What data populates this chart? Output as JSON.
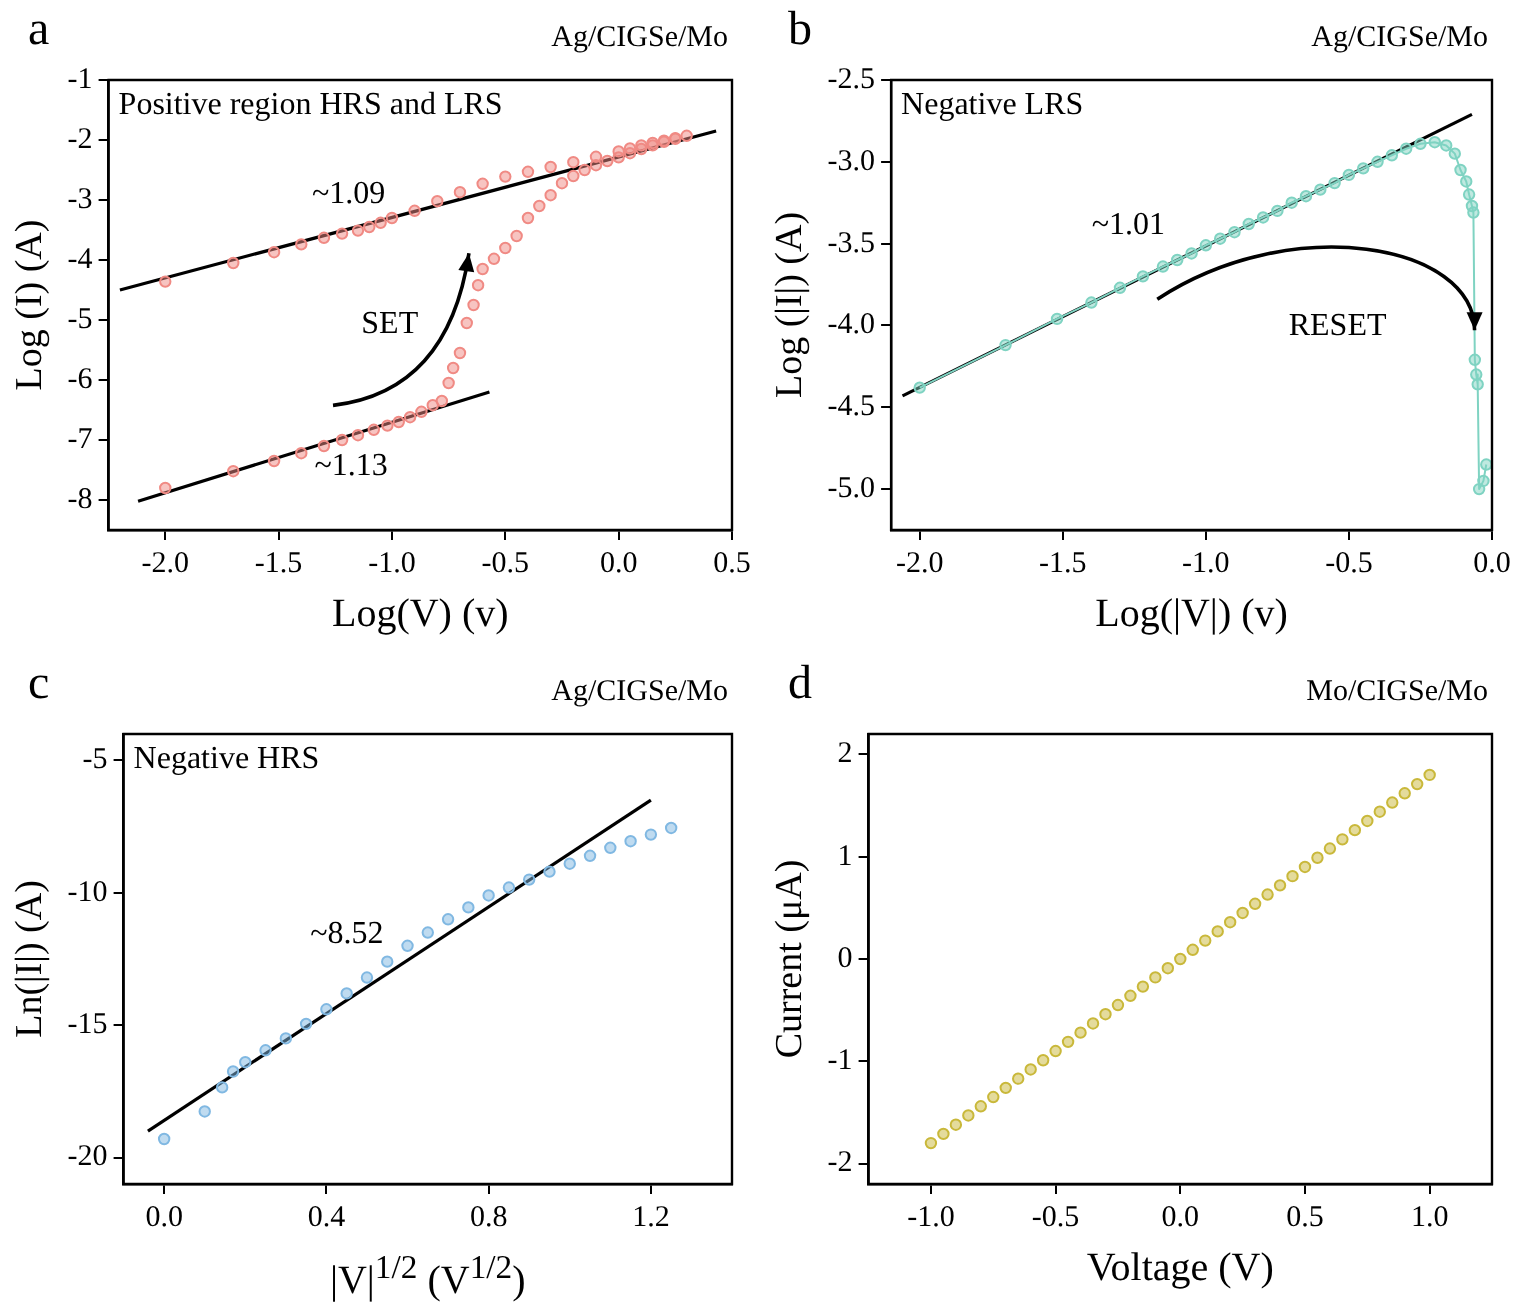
{
  "chart_data": [
    {
      "type": "scatter",
      "title": "a",
      "subtitle": "Ag/CIGSe/Mo",
      "xlabel": "Log(V) (v)",
      "ylabel": "Log (I) (A)",
      "xlim": [
        -2.25,
        0.5
      ],
      "ylim": [
        -8.5,
        -1
      ],
      "xticks": [
        {
          "value": -2,
          "label": "-2.0"
        },
        {
          "value": -1.5,
          "label": "-1.5"
        },
        {
          "value": -1,
          "label": "-1.0"
        },
        {
          "value": -0.5,
          "label": "-0.5"
        },
        {
          "value": 0,
          "label": "0.0"
        },
        {
          "value": 0.5,
          "label": "0.5"
        }
      ],
      "yticks": [
        -8,
        -7,
        -6,
        -5,
        -4,
        -3,
        -2,
        -1
      ],
      "grid": false,
      "legend": false,
      "marker": "circle",
      "annotations": [
        "Positive region HRS and LRS",
        "~1.09",
        "~1.13",
        "SET"
      ],
      "series": [
        {
          "color": "#f08a84",
          "x": [
            -2,
            -1.7,
            -1.52,
            -1.4,
            -1.3,
            -1.22,
            -1.15,
            -1.08,
            -1.02,
            -0.97,
            -0.92,
            -0.87,
            -0.82,
            -0.78,
            -0.75,
            -0.73,
            -0.7,
            -0.67,
            -0.64,
            -0.62,
            -0.6,
            -0.55,
            -0.5,
            -0.45,
            -0.4,
            -0.35,
            -0.3,
            -0.25,
            -0.2,
            -0.15,
            -0.1,
            -0.05,
            0,
            0.05,
            0.1,
            0.15,
            0.2,
            0.25,
            0.3,
            0.25,
            0.2,
            0.15,
            0.1,
            0.05,
            0,
            -0.1,
            -0.2,
            -0.3,
            -0.4,
            -0.5,
            -0.6,
            -0.7,
            -0.8,
            -0.9,
            -1,
            -1.05,
            -1.1,
            -1.15,
            -1.22,
            -1.3,
            -1.4,
            -1.52,
            -1.7,
            -2
          ],
          "values": [
            -7.8,
            -7.52,
            -7.35,
            -7.22,
            -7.1,
            -7,
            -6.92,
            -6.83,
            -6.76,
            -6.7,
            -6.62,
            -6.53,
            -6.42,
            -6.35,
            -6.05,
            -5.8,
            -5.55,
            -5.05,
            -4.75,
            -4.42,
            -4.15,
            -3.98,
            -3.8,
            -3.6,
            -3.3,
            -3.1,
            -2.92,
            -2.72,
            -2.6,
            -2.5,
            -2.42,
            -2.35,
            -2.29,
            -2.22,
            -2.15,
            -2.09,
            -2.03,
            -1.98,
            -1.93,
            -1.97,
            -2.01,
            -2.05,
            -2.09,
            -2.14,
            -2.19,
            -2.28,
            -2.37,
            -2.45,
            -2.53,
            -2.61,
            -2.73,
            -2.87,
            -3.02,
            -3.18,
            -3.3,
            -3.38,
            -3.45,
            -3.51,
            -3.56,
            -3.63,
            -3.74,
            -3.87,
            -4.05,
            -4.36
          ]
        },
        {
          "type": "line",
          "color": "#000000",
          "marker": "none",
          "line_style": "solid",
          "x": [
            -2.2,
            0.43
          ],
          "values": [
            -4.5,
            -1.85
          ]
        },
        {
          "type": "line",
          "color": "#000000",
          "marker": "none",
          "line_style": "solid",
          "x": [
            -2.12,
            -0.57
          ],
          "values": [
            -8.02,
            -6.2
          ]
        }
      ]
    },
    {
      "type": "line",
      "title": "b",
      "subtitle": "Ag/CIGSe/Mo",
      "xlabel": "Log(|V|) (v)",
      "ylabel": "Log (|I|) (A)",
      "xlim": [
        -2.1,
        0
      ],
      "ylim": [
        -5.25,
        -2.5
      ],
      "xticks": [
        {
          "value": -2,
          "label": "-2.0"
        },
        {
          "value": -1.5,
          "label": "-1.5"
        },
        {
          "value": -1,
          "label": "-1.0"
        },
        {
          "value": -0.5,
          "label": "-0.5"
        },
        {
          "value": 0,
          "label": "0.0"
        }
      ],
      "yticks": [
        {
          "value": -5,
          "label": "-5.0"
        },
        {
          "value": -4.5,
          "label": "-4.5"
        },
        {
          "value": -4,
          "label": "-4.0"
        },
        {
          "value": -3.5,
          "label": "-3.5"
        },
        {
          "value": -3,
          "label": "-3.0"
        },
        {
          "value": -2.5,
          "label": "-2.5"
        }
      ],
      "grid": false,
      "legend": false,
      "marker": "circle",
      "annotations": [
        "Negative LRS",
        "~1.01",
        "RESET"
      ],
      "series": [
        {
          "color": "#7fd3c2",
          "x": [
            -2,
            -1.7,
            -1.52,
            -1.4,
            -1.3,
            -1.22,
            -1.15,
            -1.1,
            -1.05,
            -1,
            -0.95,
            -0.9,
            -0.85,
            -0.8,
            -0.75,
            -0.7,
            -0.65,
            -0.6,
            -0.55,
            -0.5,
            -0.45,
            -0.4,
            -0.35,
            -0.3,
            -0.25,
            -0.2,
            -0.16,
            -0.13,
            -0.11,
            -0.09,
            -0.08,
            -0.07,
            -0.065,
            -0.06,
            -0.055,
            -0.05,
            -0.045,
            -0.03,
            -0.02
          ],
          "values": [
            -4.38,
            -4.12,
            -3.96,
            -3.86,
            -3.77,
            -3.7,
            -3.64,
            -3.6,
            -3.56,
            -3.51,
            -3.47,
            -3.43,
            -3.38,
            -3.34,
            -3.3,
            -3.25,
            -3.21,
            -3.17,
            -3.13,
            -3.08,
            -3.04,
            -3,
            -2.96,
            -2.92,
            -2.89,
            -2.88,
            -2.9,
            -2.95,
            -3.05,
            -3.12,
            -3.2,
            -3.27,
            -3.31,
            -4.21,
            -4.3,
            -4.36,
            -5,
            -4.95,
            -4.85
          ]
        },
        {
          "color": "#000000",
          "marker": "none",
          "line_style": "solid",
          "x": [
            -2.06,
            -0.07
          ],
          "values": [
            -4.43,
            -2.71
          ]
        }
      ]
    },
    {
      "type": "scatter",
      "title": "c",
      "subtitle": "Ag/CIGSe/Mo",
      "xlabel": "|V|$^{1/2}$ (V$^{1/2}$)",
      "ylabel": "Ln(|I|) (A)",
      "xlim": [
        -0.1,
        1.4
      ],
      "ylim": [
        -21,
        -4
      ],
      "xticks": [
        {
          "value": 0,
          "label": "0.0"
        },
        {
          "value": 0.4,
          "label": "0.4"
        },
        {
          "value": 0.8,
          "label": "0.8"
        },
        {
          "value": 1.2,
          "label": "1.2"
        }
      ],
      "yticks": [
        -20,
        -15,
        -10,
        -5
      ],
      "grid": false,
      "legend": false,
      "marker": "circle",
      "annotations": [
        "Negative HRS",
        "~8.52"
      ],
      "series": [
        {
          "color": "#80b8e2",
          "x": [
            0,
            0.1,
            0.143,
            0.17,
            0.2,
            0.25,
            0.3,
            0.35,
            0.4,
            0.45,
            0.5,
            0.55,
            0.6,
            0.65,
            0.7,
            0.75,
            0.8,
            0.85,
            0.9,
            0.95,
            1,
            1.05,
            1.1,
            1.15,
            1.2,
            1.25
          ],
          "values": [
            -19.3,
            -18.26,
            -17.35,
            -16.75,
            -16.4,
            -15.95,
            -15.5,
            -14.95,
            -14.4,
            -13.8,
            -13.2,
            -12.6,
            -12,
            -11.5,
            -11,
            -10.55,
            -10.1,
            -9.8,
            -9.5,
            -9.2,
            -8.9,
            -8.6,
            -8.3,
            -8.05,
            -7.8,
            -7.55
          ]
        },
        {
          "type": "line",
          "color": "#000000",
          "marker": "none",
          "line_style": "solid",
          "x": [
            -0.04,
            1.2
          ],
          "values": [
            -19,
            -6.5
          ]
        }
      ]
    },
    {
      "type": "scatter",
      "title": "d",
      "subtitle": "Mo/CIGSe/Mo",
      "xlabel": "Voltage (V)",
      "ylabel": "Current (μA)",
      "xlim": [
        -1.25,
        1.25
      ],
      "ylim": [
        -2.2,
        2.2
      ],
      "xticks": [
        {
          "value": -1,
          "label": "-1.0"
        },
        {
          "value": -0.5,
          "label": "-0.5"
        },
        {
          "value": 0,
          "label": "0.0"
        },
        {
          "value": 0.5,
          "label": "0.5"
        },
        {
          "value": 1,
          "label": "1.0"
        }
      ],
      "yticks": [
        -2,
        -1,
        0,
        1,
        2
      ],
      "grid": false,
      "legend": false,
      "marker": "circle",
      "series": [
        {
          "color": "#c9b83a",
          "x": [
            -1,
            -0.95,
            -0.9,
            -0.85,
            -0.8,
            -0.75,
            -0.7,
            -0.65,
            -0.6,
            -0.55,
            -0.5,
            -0.45,
            -0.4,
            -0.35,
            -0.3,
            -0.25,
            -0.2,
            -0.15,
            -0.1,
            -0.05,
            0,
            0.05,
            0.1,
            0.15,
            0.2,
            0.25,
            0.3,
            0.35,
            0.4,
            0.45,
            0.5,
            0.55,
            0.6,
            0.65,
            0.7,
            0.75,
            0.8,
            0.85,
            0.9,
            0.95,
            1
          ],
          "values": [
            -1.8,
            -1.71,
            -1.62,
            -1.53,
            -1.44,
            -1.35,
            -1.26,
            -1.17,
            -1.08,
            -0.99,
            -0.9,
            -0.81,
            -0.72,
            -0.63,
            -0.54,
            -0.45,
            -0.36,
            -0.27,
            -0.18,
            -0.09,
            0,
            0.09,
            0.18,
            0.27,
            0.36,
            0.45,
            0.54,
            0.63,
            0.72,
            0.81,
            0.9,
            0.99,
            1.08,
            1.17,
            1.26,
            1.35,
            1.44,
            1.53,
            1.62,
            1.71,
            1.8
          ]
        }
      ]
    }
  ]
}
